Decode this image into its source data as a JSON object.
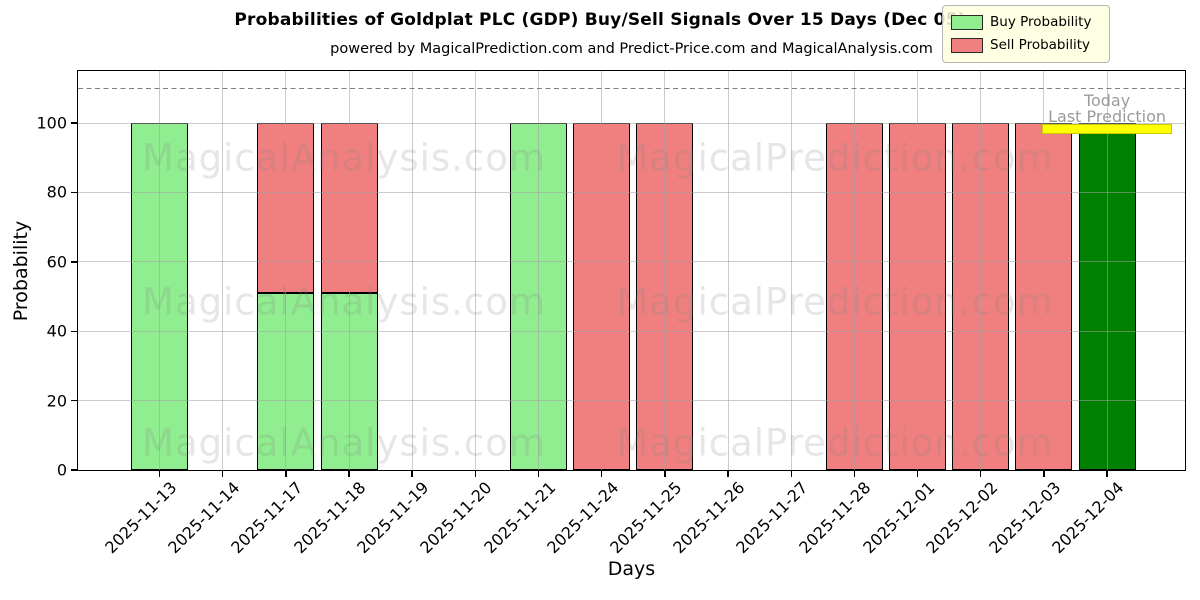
{
  "chart_data": {
    "type": "bar",
    "stacked": true,
    "title": "Probabilities of Goldplat PLC (GDP) Buy/Sell Signals Over 15 Days (Dec 05)",
    "subtitle": "powered by MagicalPrediction.com and Predict-Price.com and MagicalAnalysis.com",
    "xlabel": "Days",
    "ylabel": "Probability",
    "ylim": [
      0,
      115
    ],
    "yticks": [
      0,
      20,
      40,
      60,
      80,
      100
    ],
    "grid": true,
    "legend_position": "upper right",
    "dashed_line_y": 110,
    "categories": [
      "2025-11-13",
      "2025-11-14",
      "2025-11-17",
      "2025-11-18",
      "2025-11-19",
      "2025-11-20",
      "2025-11-21",
      "2025-11-24",
      "2025-11-25",
      "2025-11-26",
      "2025-11-27",
      "2025-11-28",
      "2025-12-01",
      "2025-12-02",
      "2025-12-03",
      "2025-12-04"
    ],
    "series": [
      {
        "name": "Buy Probability",
        "color": "#90ee90",
        "values": [
          100,
          0,
          51,
          51,
          0,
          0,
          100,
          0,
          0,
          0,
          0,
          0,
          0,
          0,
          0,
          100
        ]
      },
      {
        "name": "Sell Probability",
        "color": "#f08080",
        "values": [
          0,
          0,
          49,
          49,
          0,
          0,
          0,
          100,
          100,
          0,
          0,
          100,
          100,
          100,
          100,
          0
        ]
      }
    ],
    "today_marker": {
      "category_index": 15,
      "bar_color": "#008000",
      "band_color": "#ffff00",
      "annotations": [
        "Today",
        "Last Prediction"
      ]
    }
  },
  "legend": {
    "items": [
      {
        "label": "Buy Probability",
        "color": "#90ee90"
      },
      {
        "label": "Sell Probability",
        "color": "#f08080"
      }
    ]
  },
  "watermarks": {
    "left_text": "MagicalAnalysis.com",
    "right_text": "MagicalPrediction.com",
    "rows": 3
  },
  "colors": {
    "grid": "rgba(160,160,160,0.55)",
    "dashed_line": "#7f7f7f",
    "bar_edge": "#000000",
    "legend_bg": "#ffffe0"
  }
}
